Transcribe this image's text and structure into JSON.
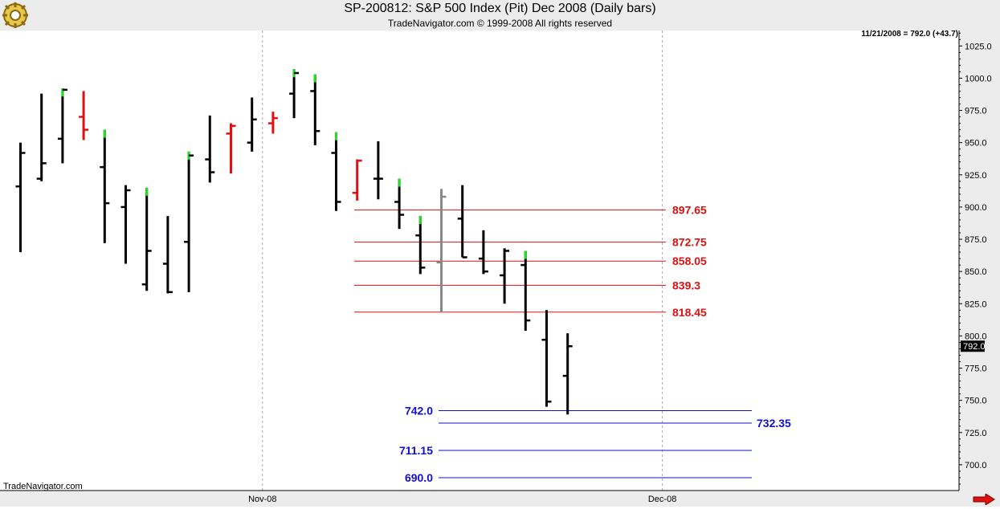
{
  "header": {
    "title": "SP-200812:  S&P 500 Index (Pit) Dec 2008  (Daily bars)",
    "subtitle": "TradeNavigator.com © 1999-2008 All rights reserved",
    "last_info": "11/21/2008 = 792.0 (+43.7)",
    "watermark": "TradeNavigator.com"
  },
  "colors": {
    "up": "#22dd22",
    "down": "#e01010",
    "bar": "#000000",
    "highlight_bar": "#888888",
    "resistance": "#e01010",
    "support": "#1010cc",
    "grid": "#aaaaaa",
    "plot_bg": "#ffffff",
    "frame_bg": "#ececec"
  },
  "chart_data": {
    "type": "ohlc",
    "title": "SP-200812:  S&P 500 Index (Pit) Dec 2008  (Daily bars)",
    "xlabel": "",
    "ylabel": "",
    "ylim": [
      680,
      1037
    ],
    "y_ticks": [
      700,
      725,
      750,
      775,
      800,
      825,
      850,
      875,
      900,
      925,
      950,
      975,
      1000,
      1025
    ],
    "y_tick_labels": [
      "700.0",
      "725.0",
      "750.0",
      "775.0",
      "800.0",
      "825.0",
      "850.0",
      "875.0",
      "900.0",
      "925.0",
      "950.0",
      "975.0",
      "1000.0",
      "1025.0"
    ],
    "x_labels": [
      {
        "label": "Nov-08",
        "bar_index": 11.5
      },
      {
        "label": "Dec-08",
        "bar_index": 30.5
      }
    ],
    "last_price_label": "792.0",
    "bars": [
      {
        "o": 916,
        "h": 950,
        "l": 865,
        "c": 942,
        "t": "normal"
      },
      {
        "o": 922,
        "h": 988,
        "l": 920,
        "c": 934,
        "t": "normal"
      },
      {
        "o": 953,
        "h": 992,
        "l": 934,
        "c": 991,
        "t": "up"
      },
      {
        "o": 970,
        "h": 990,
        "l": 952,
        "c": 960,
        "t": "down"
      },
      {
        "o": 931,
        "h": 960,
        "l": 872,
        "c": 903,
        "t": "up"
      },
      {
        "o": 900,
        "h": 917,
        "l": 856,
        "c": 913,
        "t": "normal"
      },
      {
        "o": 840,
        "h": 915,
        "l": 835,
        "c": 866,
        "t": "up"
      },
      {
        "o": 856,
        "h": 893,
        "l": 833,
        "c": 834,
        "t": "normal"
      },
      {
        "o": 873,
        "h": 943,
        "l": 834,
        "c": 940,
        "t": "up"
      },
      {
        "o": 937,
        "h": 971,
        "l": 919,
        "c": 927,
        "t": "normal"
      },
      {
        "o": 957,
        "h": 965,
        "l": 926,
        "c": 963,
        "t": "down"
      },
      {
        "o": 950,
        "h": 985,
        "l": 943,
        "c": 968,
        "t": "normal"
      },
      {
        "o": 965,
        "h": 974,
        "l": 957,
        "c": 969,
        "t": "down"
      },
      {
        "o": 988,
        "h": 1007,
        "l": 969,
        "c": 1004,
        "t": "up"
      },
      {
        "o": 990,
        "h": 1003,
        "l": 948,
        "c": 959,
        "t": "up"
      },
      {
        "o": 942,
        "h": 958,
        "l": 897,
        "c": 904,
        "t": "up"
      },
      {
        "o": 911,
        "h": 937,
        "l": 905,
        "c": 936,
        "t": "down"
      },
      {
        "o": 922,
        "h": 951,
        "l": 906,
        "c": 922,
        "t": "normal"
      },
      {
        "o": 904,
        "h": 922,
        "l": 883,
        "c": 894,
        "t": "up"
      },
      {
        "o": 878,
        "h": 893,
        "l": 848,
        "c": 853,
        "t": "up"
      },
      {
        "o": 857,
        "h": 914,
        "l": 818,
        "c": 908,
        "t": "highlight"
      },
      {
        "o": 891,
        "h": 917,
        "l": 861,
        "c": 861,
        "t": "normal"
      },
      {
        "o": 860,
        "h": 882,
        "l": 848,
        "c": 850,
        "t": "normal"
      },
      {
        "o": 847,
        "h": 868,
        "l": 825,
        "c": 866,
        "t": "normal"
      },
      {
        "o": 855,
        "h": 866,
        "l": 804,
        "c": 812,
        "t": "up"
      },
      {
        "o": 797,
        "h": 820,
        "l": 745,
        "c": 749,
        "t": "normal"
      },
      {
        "o": 769,
        "h": 802,
        "l": 739,
        "c": 792,
        "t": "normal"
      }
    ],
    "resistance_levels": [
      {
        "value": 897.65,
        "label": "897.65"
      },
      {
        "value": 872.75,
        "label": "872.75"
      },
      {
        "value": 858.05,
        "label": "858.05"
      },
      {
        "value": 839.3,
        "label": "839.3"
      },
      {
        "value": 818.45,
        "label": "818.45"
      }
    ],
    "support_levels": [
      {
        "value": 742.0,
        "label": "742.0",
        "label_side": "left"
      },
      {
        "value": 732.35,
        "label": "732.35",
        "label_side": "right"
      },
      {
        "value": 711.15,
        "label": "711.15",
        "label_side": "left"
      },
      {
        "value": 690.0,
        "label": "690.0",
        "label_side": "left"
      }
    ],
    "grid": {
      "horizontal": false,
      "vertical": true
    },
    "legend": "none"
  }
}
